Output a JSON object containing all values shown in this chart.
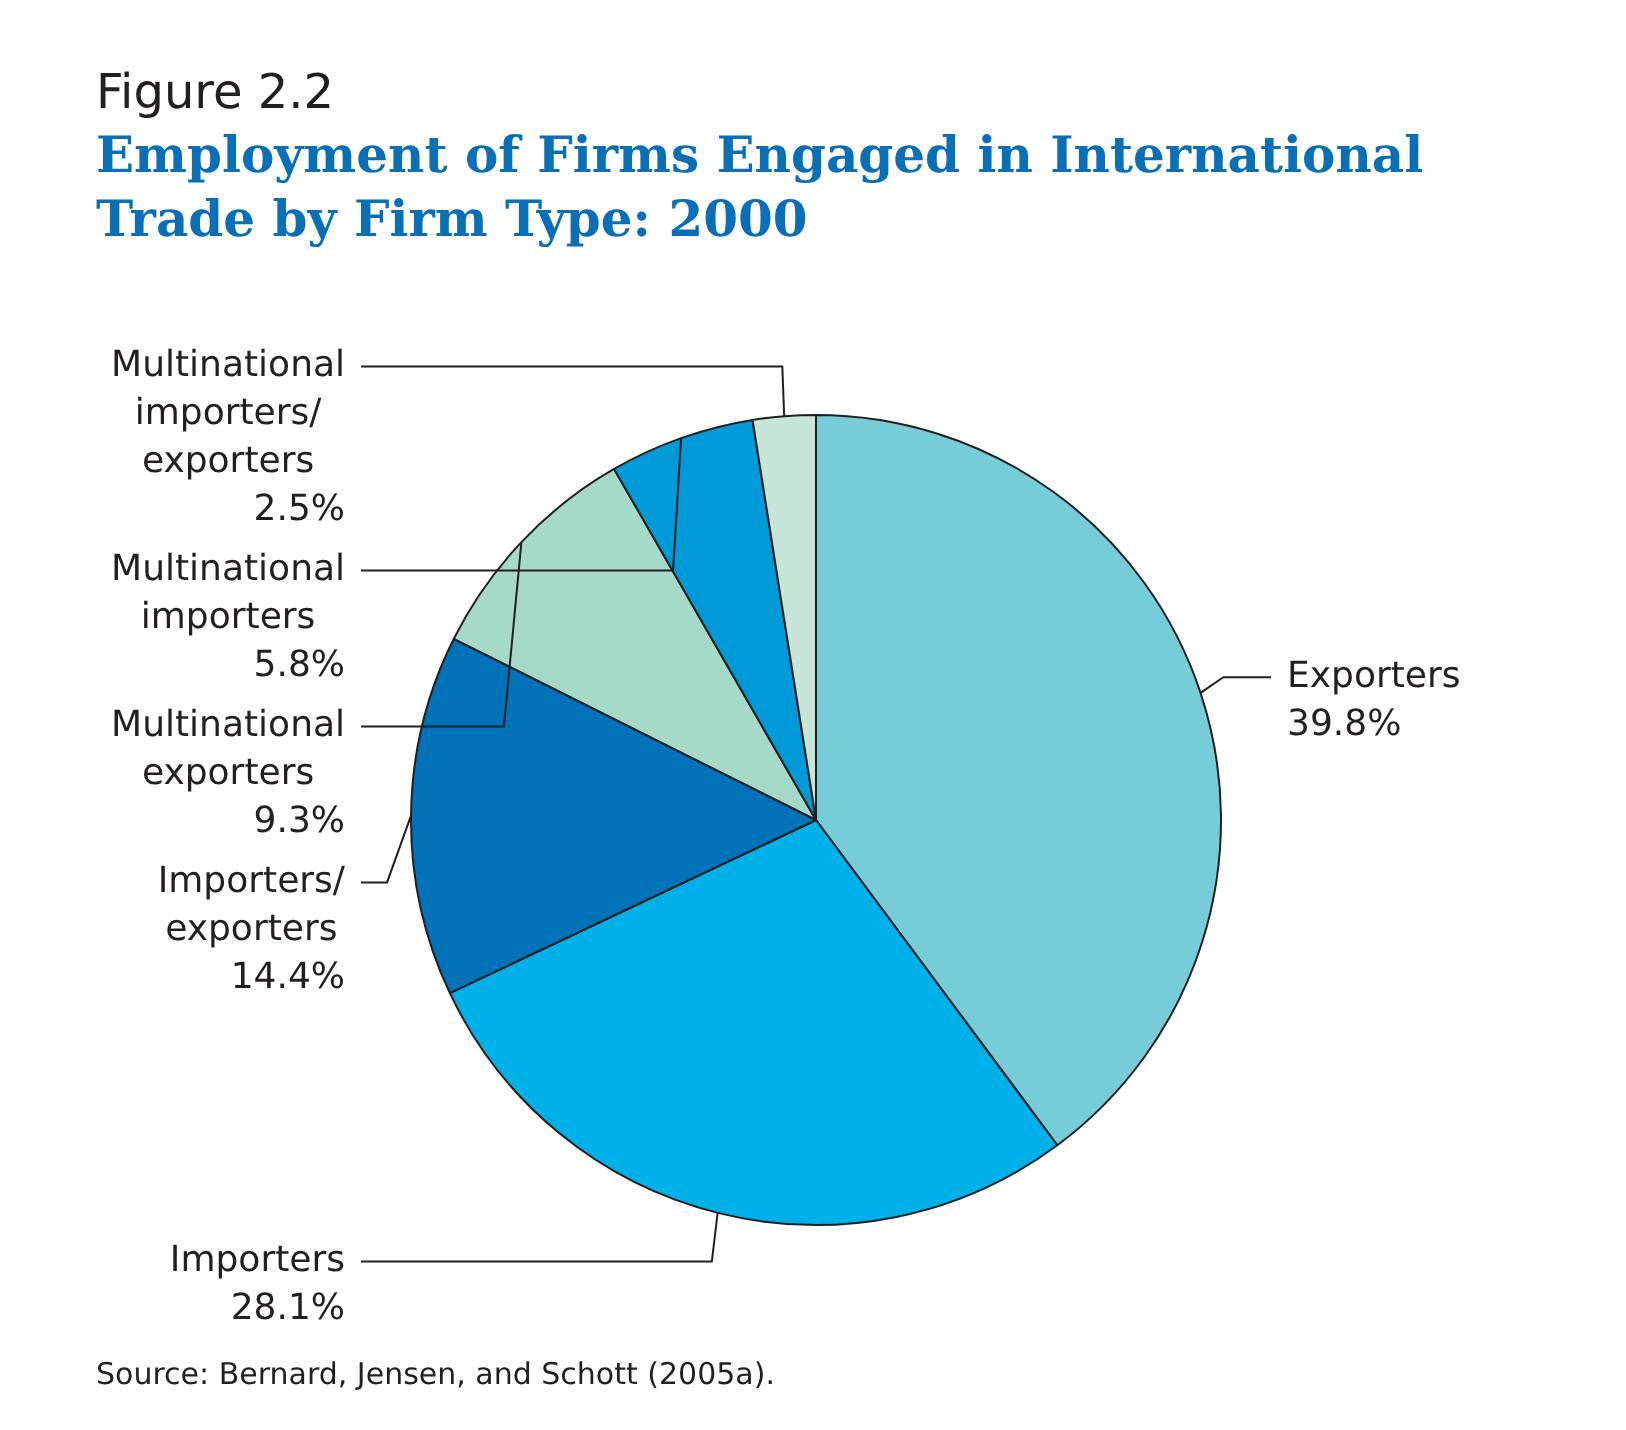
{
  "chart_data": {
    "type": "pie",
    "subtitle": "Figure 2.2",
    "title": "Employment of Firms Engaged in International Trade by Firm Type:  2000",
    "categories": [
      "Exporters",
      "Importers",
      "Importers/exporters",
      "Multinational exporters",
      "Multinational importers",
      "Multinational importers/exporters"
    ],
    "values": [
      39.8,
      28.1,
      14.4,
      9.3,
      5.8,
      2.5
    ],
    "value_labels": [
      "39.8%",
      "28.1%",
      "14.4%",
      "9.3%",
      "5.8%",
      "2.5%"
    ],
    "colors": [
      "#76cdd8",
      "#00b0e8",
      "#0072b8",
      "#a6dac8",
      "#009ad8",
      "#c8e6d8"
    ],
    "legend": false,
    "annotations": [
      "Source:  Bernard, Jensen, and Schott (2005a)."
    ]
  }
}
